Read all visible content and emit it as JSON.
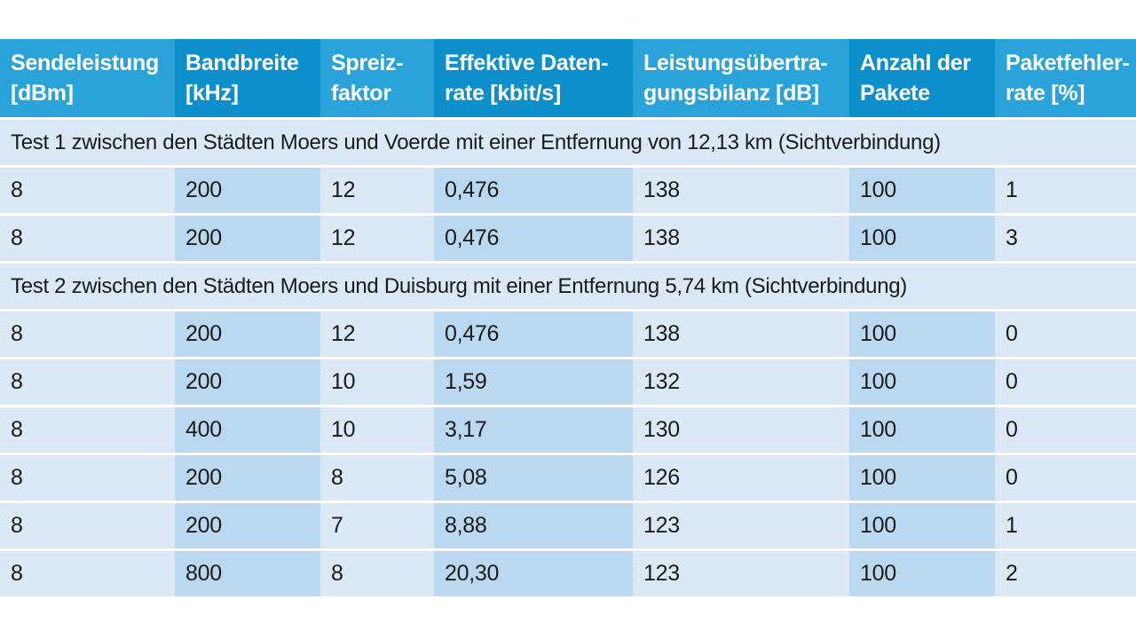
{
  "table": {
    "headers": [
      "Sendeleistung\n[dBm]",
      "Bandbreite\n[kHz]",
      "Spreiz-\nfaktor",
      "Effektive Daten-\nrate [kbit/s]",
      "Leistungsübertra-\ngungsbilanz [dB]",
      "Anzahl der\nPakete",
      "Paketfehler-\nrate [%]"
    ],
    "sections": [
      {
        "title": "Test 1 zwischen den Städten Moers und Voerde mit einer Entfernung von 12,13 km (Sichtverbindung)",
        "rows": [
          [
            "8",
            "200",
            "12",
            "0,476",
            "138",
            "100",
            "1"
          ],
          [
            "8",
            "200",
            "12",
            "0,476",
            "138",
            "100",
            "3"
          ]
        ]
      },
      {
        "title": "Test 2 zwischen den Städten Moers und Duisburg mit einer Entfernung 5,74 km (Sichtverbindung)",
        "rows": [
          [
            "8",
            "200",
            "12",
            "0,476",
            "138",
            "100",
            "0"
          ],
          [
            "8",
            "200",
            "10",
            "1,59",
            "132",
            "100",
            "0"
          ],
          [
            "8",
            "400",
            "10",
            "3,17",
            "130",
            "100",
            "0"
          ],
          [
            "8",
            "200",
            "8",
            "5,08",
            "126",
            "100",
            "0"
          ],
          [
            "8",
            "200",
            "7",
            "8,88",
            "123",
            "100",
            "1"
          ],
          [
            "8",
            "800",
            "8",
            "20,30",
            "123",
            "100",
            "2"
          ]
        ]
      }
    ]
  },
  "colors": {
    "header_light": "#2aa3da",
    "header_dark": "#0d8fcb",
    "row_light": "#dbe9f6",
    "row_dark": "#bad9f0"
  }
}
